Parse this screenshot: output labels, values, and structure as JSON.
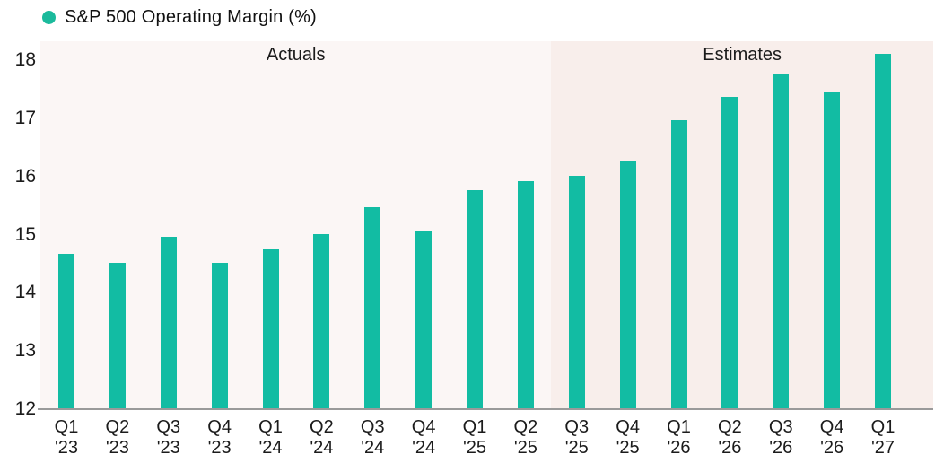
{
  "legend": {
    "label": "S&P 500 Operating Margin (%)"
  },
  "chart_data": {
    "type": "bar",
    "title": "S&P 500 Operating Margin (%)",
    "categories": [
      "Q1 '23",
      "Q2 '23",
      "Q3 '23",
      "Q4 '23",
      "Q1 '24",
      "Q2 '24",
      "Q3 '24",
      "Q4 '24",
      "Q1 '25",
      "Q2 '25",
      "Q3 '25",
      "Q4 '25",
      "Q1 '26",
      "Q2 '26",
      "Q3 '26",
      "Q4 '26",
      "Q1 '27"
    ],
    "values": [
      14.65,
      14.5,
      14.95,
      14.5,
      14.75,
      15.0,
      15.45,
      15.05,
      15.75,
      15.9,
      16.0,
      16.25,
      16.95,
      17.35,
      17.75,
      17.45,
      18.1
    ],
    "series": [
      {
        "name": "S&P 500 Operating Margin (%)",
        "values": [
          14.65,
          14.5,
          14.95,
          14.5,
          14.75,
          15.0,
          15.45,
          15.05,
          15.75,
          15.9,
          16.0,
          16.25,
          16.95,
          17.35,
          17.75,
          17.45,
          18.1
        ]
      }
    ],
    "regions": [
      {
        "label": "Actuals",
        "from_index": 0,
        "to_index": 9
      },
      {
        "label": "Estimates",
        "from_index": 10,
        "to_index": 16
      }
    ],
    "xlabel": "",
    "ylabel": "",
    "ylim": [
      12,
      18.3
    ],
    "yticks": [
      12,
      13,
      14,
      15,
      16,
      17,
      18
    ],
    "grid": false,
    "legend_position": "top-left",
    "colors": {
      "bar": "#12BCA3",
      "legend_marker": "#1BBA9C",
      "actuals_background": "#FBF6F5",
      "estimates_background": "#F8EEEB",
      "axis_line": "#9A9A9A",
      "text": "#1B1B1B"
    }
  }
}
